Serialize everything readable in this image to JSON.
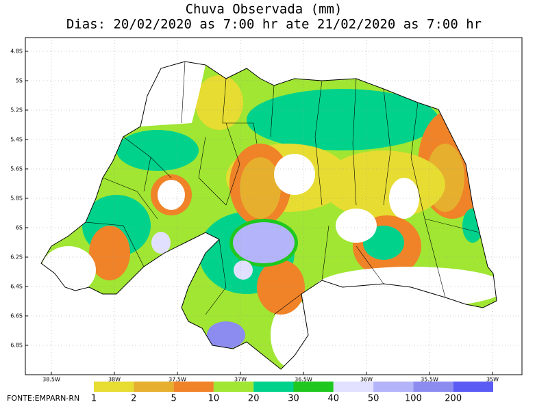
{
  "title": "Chuva Observada (mm)",
  "subtitle": "Dias: 20/02/2020 as 7:00 hr ate 21/02/2020 as 7:00 hr",
  "lat_labels": [
    "4.8S",
    "5S",
    "5.2S",
    "5.4S",
    "5.6S",
    "5.8S",
    "6S",
    "6.2S",
    "6.4S",
    "6.6S",
    "6.8S"
  ],
  "lon_labels": [
    "38.5W",
    "38W",
    "37.5W",
    "37W",
    "36.5W",
    "36W",
    "35.5W",
    "35W"
  ],
  "legend": {
    "labels": [
      1,
      2,
      5,
      10,
      20,
      30,
      40,
      50,
      100,
      200
    ],
    "colors": [
      "#e6dc32",
      "#e6af2d",
      "#f08228",
      "#a0e632",
      "#00d28c",
      "#1ec81e",
      "#e1e1ff",
      "#b4b4fa",
      "#8c8cf0",
      "#5a5af5"
    ]
  },
  "source": "FONTE:EMPARN-RN"
}
